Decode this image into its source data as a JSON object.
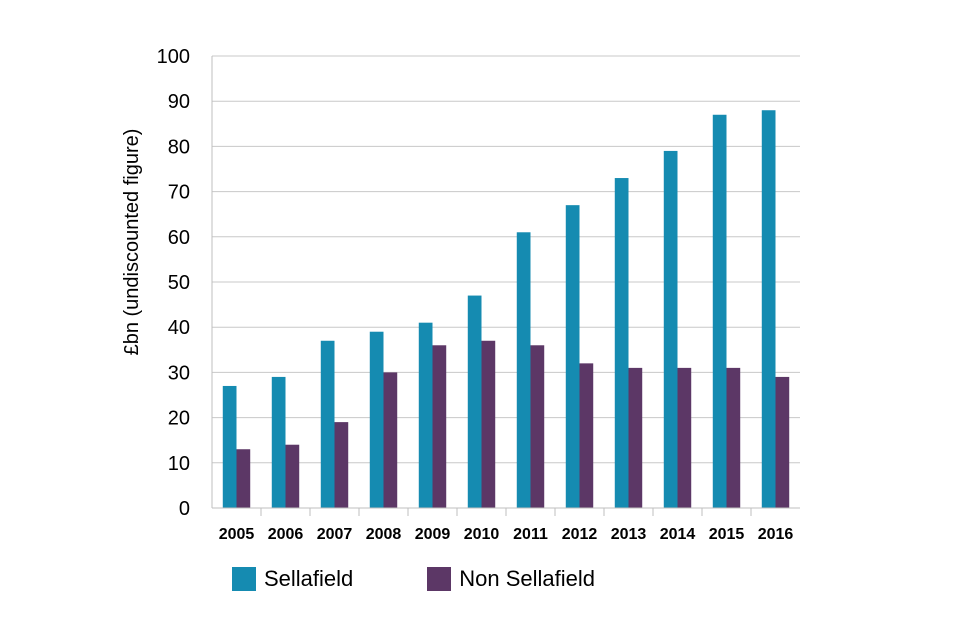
{
  "chart_data": {
    "type": "bar",
    "title": "",
    "xlabel": "",
    "ylabel": "£bn (undiscounted figure)",
    "ylim": [
      0,
      100
    ],
    "yticks": [
      0,
      10,
      20,
      30,
      40,
      50,
      60,
      70,
      80,
      90,
      100
    ],
    "grid": true,
    "legend_position": "bottom",
    "categories": [
      "2005",
      "2006",
      "2007",
      "2008",
      "2009",
      "2010",
      "2011",
      "2012",
      "2013",
      "2014",
      "2015",
      "2016"
    ],
    "series": [
      {
        "name": "Sellafield",
        "color": "#158bb1",
        "values": [
          27,
          29,
          37,
          39,
          41,
          47,
          61,
          67,
          73,
          79,
          87,
          88
        ]
      },
      {
        "name": "Non Sellafield",
        "color": "#5c3766",
        "values": [
          13,
          14,
          19,
          30,
          36,
          37,
          36,
          32,
          31,
          31,
          31,
          29
        ]
      }
    ]
  }
}
